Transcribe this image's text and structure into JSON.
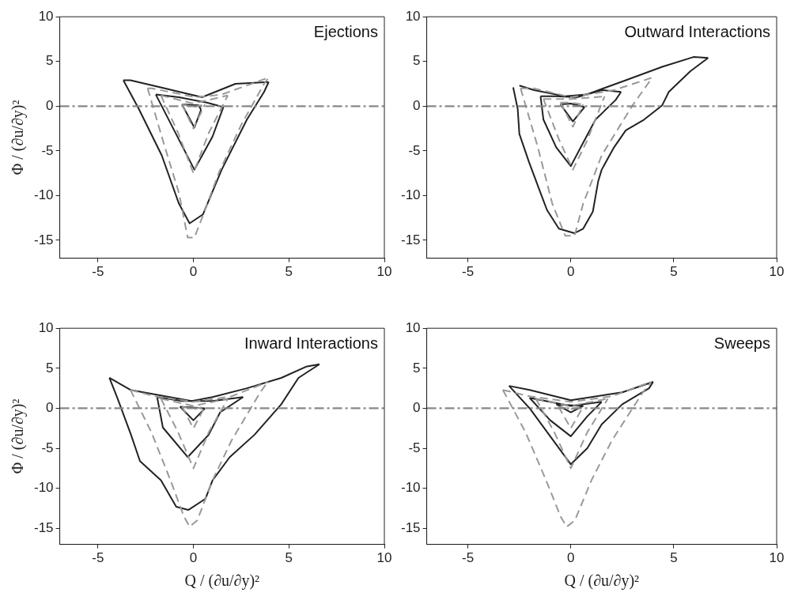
{
  "chart_data": [
    {
      "type": "line",
      "title": "Ejections",
      "ylabel": "Φ / (∂u/∂y)²",
      "xlim": [
        -7,
        10
      ],
      "ylim": [
        -17,
        10
      ],
      "xticks": [
        -5,
        0,
        5,
        10
      ],
      "yticks": [
        -15,
        -10,
        -5,
        0,
        5,
        10
      ],
      "grid": false,
      "legend": false,
      "ref_lines": [
        {
          "axis": "y",
          "value": 0,
          "color": "#888888",
          "line_style": "dashed"
        }
      ],
      "series": [
        {
          "type": "line",
          "color": "#999999",
          "line_style": "dashed",
          "x": [
            -2.4,
            -1.66,
            -0.76,
            -0.3,
            0.05,
            0.45,
            1.34,
            2.5,
            3.7,
            3.94
          ],
          "values": [
            2,
            -3.4,
            -9.7,
            -14.7,
            -14.7,
            -12.5,
            -7.4,
            -2.1,
            2.5,
            3.2
          ]
        },
        {
          "type": "line",
          "color": "#999999",
          "line_style": "dashed",
          "x": [
            -2.4,
            -2.2,
            0.13,
            1.48,
            3.94
          ],
          "values": [
            2,
            2,
            1,
            1.3,
            3.2
          ]
        },
        {
          "type": "line",
          "color": "#999999",
          "line_style": "dashed",
          "x": [
            -1.7,
            -0.8,
            0,
            0.8,
            1.8
          ],
          "values": [
            1.2,
            -3,
            -7.5,
            -3,
            1.2
          ]
        },
        {
          "type": "line",
          "color": "#999999",
          "line_style": "dashed",
          "x": [
            -1.7,
            0,
            1.8
          ],
          "values": [
            1.2,
            0.3,
            1.2
          ]
        },
        {
          "type": "line",
          "color": "#999999",
          "line_style": "dashed",
          "x": [
            -0.6,
            0,
            0.6
          ],
          "values": [
            0.2,
            -2.5,
            0.2
          ]
        },
        {
          "type": "line",
          "color": "#999999",
          "line_style": "dashed",
          "x": [
            -0.6,
            0,
            0.6
          ],
          "values": [
            0.2,
            -0.1,
            0.2
          ]
        },
        {
          "type": "line",
          "color": "#222222",
          "line_style": "solid",
          "x": [
            -3.67,
            -2.86,
            -1.66,
            -0.76,
            -0.2,
            0.5,
            1.48,
            2.8,
            3.7,
            3.94
          ],
          "values": [
            2.9,
            -0.3,
            -5.5,
            -10.9,
            -13.1,
            -12.1,
            -7.1,
            -1.5,
            1.6,
            2.7
          ]
        },
        {
          "type": "line",
          "color": "#222222",
          "line_style": "solid",
          "x": [
            -3.67,
            -3.3,
            -1.5,
            0.45,
            2.2,
            3.94
          ],
          "values": [
            2.9,
            2.9,
            2,
            1,
            2.5,
            2.7
          ]
        },
        {
          "type": "line",
          "color": "#222222",
          "line_style": "solid",
          "x": [
            -1.97,
            0.05,
            1,
            1.57
          ],
          "values": [
            1.3,
            -7.1,
            -3.4,
            -0.1
          ]
        },
        {
          "type": "line",
          "color": "#222222",
          "line_style": "solid",
          "x": [
            -1.97,
            -0.76,
            0.7,
            1.57
          ],
          "values": [
            1.3,
            1,
            0.4,
            -0.1
          ]
        },
        {
          "type": "line",
          "color": "#222222",
          "line_style": "solid",
          "x": [
            -0.6,
            0.05,
            0.4
          ],
          "values": [
            0.2,
            -2.4,
            -0.4
          ]
        },
        {
          "type": "line",
          "color": "#222222",
          "line_style": "solid",
          "x": [
            -0.6,
            0.27,
            0.4
          ],
          "values": [
            0.2,
            0.1,
            -0.4
          ]
        }
      ]
    },
    {
      "type": "line",
      "title": "Outward Interactions",
      "xlim": [
        -7,
        10
      ],
      "ylim": [
        -17,
        10
      ],
      "xticks": [
        -5,
        0,
        5,
        10
      ],
      "yticks": [
        -15,
        -10,
        -5,
        0,
        5,
        10
      ],
      "grid": false,
      "legend": false,
      "ref_lines": [
        {
          "axis": "y",
          "value": 0,
          "color": "#888888",
          "line_style": "dashed"
        }
      ],
      "series": [
        {
          "type": "line",
          "color": "#999999",
          "line_style": "dashed",
          "x": [
            -2.44,
            -1.6,
            -0.9,
            -0.27,
            0.18,
            0.6,
            1.5,
            3,
            3.96
          ],
          "values": [
            2,
            -4.6,
            -10.9,
            -14.5,
            -14.5,
            -10.9,
            -5.5,
            0.1,
            3.2
          ]
        },
        {
          "type": "line",
          "color": "#999999",
          "line_style": "dashed",
          "x": [
            -2.44,
            -1.8,
            0,
            2.1,
            3.96
          ],
          "values": [
            2,
            2,
            1,
            1.8,
            3.2
          ]
        },
        {
          "type": "line",
          "color": "#999999",
          "line_style": "dashed",
          "x": [
            -1.33,
            -0.58,
            0.1,
            0.76,
            1.64
          ],
          "values": [
            0.8,
            -3.7,
            -7.1,
            -4,
            1.1
          ]
        },
        {
          "type": "line",
          "color": "#999999",
          "line_style": "dashed",
          "x": [
            -1.33,
            0,
            1.64
          ],
          "values": [
            0.8,
            0.8,
            1.1
          ]
        },
        {
          "type": "line",
          "color": "#999999",
          "line_style": "dashed",
          "x": [
            -0.5,
            0.1,
            0.6
          ],
          "values": [
            0.4,
            -2.3,
            0.2
          ]
        },
        {
          "type": "line",
          "color": "#999999",
          "line_style": "dashed",
          "x": [
            -0.5,
            0,
            0.6
          ],
          "values": [
            0.4,
            0.4,
            0.2
          ]
        },
        {
          "type": "line",
          "color": "#222222",
          "line_style": "solid",
          "x": [
            -2.8,
            -2.58,
            -2.5,
            -2.04,
            -1.47,
            -1.16,
            -0.58,
            0.18,
            0.6,
            1.07,
            1.33,
            1.5,
            2.1,
            2.67,
            3.56,
            4.44,
            4.76,
            5.8,
            6.67
          ],
          "values": [
            2.1,
            -0.3,
            -3.1,
            -6.2,
            -9.7,
            -11.6,
            -13.7,
            -14.2,
            -13.7,
            -11.8,
            -8.4,
            -7.1,
            -4.6,
            -2.7,
            -1.5,
            0.1,
            1.6,
            3.9,
            5.4
          ]
        },
        {
          "type": "line",
          "color": "#222222",
          "line_style": "solid",
          "x": [
            -2.5,
            -1.78,
            -0.27,
            0.76,
            2.67,
            4.44,
            5.96,
            6.67
          ],
          "values": [
            2.3,
            1.8,
            1.1,
            1.3,
            2.9,
            4.4,
            5.5,
            5.4
          ]
        },
        {
          "type": "line",
          "color": "#222222",
          "line_style": "solid",
          "x": [
            -1.47,
            -1.33,
            -0.71,
            0,
            0.62,
            1.2,
            2.18,
            2.44
          ],
          "values": [
            1.1,
            -1.5,
            -4.6,
            -6.7,
            -4,
            -1.5,
            0.7,
            1.6
          ]
        },
        {
          "type": "line",
          "color": "#222222",
          "line_style": "solid",
          "x": [
            -1.47,
            -0.71,
            0.3,
            1.5,
            2.44
          ],
          "values": [
            1.1,
            1.1,
            1,
            1.8,
            1.6
          ]
        },
        {
          "type": "line",
          "color": "#222222",
          "line_style": "solid",
          "x": [
            -0.5,
            0.1,
            0.67
          ],
          "values": [
            0.2,
            -1.7,
            -0.1
          ]
        },
        {
          "type": "line",
          "color": "#222222",
          "line_style": "solid",
          "x": [
            -0.5,
            0,
            0.67
          ],
          "values": [
            0.2,
            0.3,
            -0.1
          ]
        }
      ]
    },
    {
      "type": "line",
      "title": "Inward Interactions",
      "xlabel": "Q / (∂u/∂y)²",
      "ylabel": "Φ / (∂u/∂y)²",
      "xlim": [
        -7,
        10
      ],
      "ylim": [
        -17,
        10
      ],
      "xticks": [
        -5,
        0,
        5,
        10
      ],
      "yticks": [
        -15,
        -10,
        -5,
        0,
        5,
        10
      ],
      "grid": false,
      "legend": false,
      "ref_lines": [
        {
          "axis": "y",
          "value": 0,
          "color": "#888888",
          "line_style": "dashed"
        }
      ],
      "series": [
        {
          "type": "line",
          "color": "#999999",
          "line_style": "dashed",
          "x": [
            -3.3,
            -2.2,
            -1.2,
            -0.5,
            -0.2,
            0.2,
            1,
            2,
            3.5,
            3.9
          ],
          "values": [
            2.3,
            -3,
            -9,
            -13.5,
            -14.8,
            -14,
            -9,
            -4,
            2,
            3.3
          ]
        },
        {
          "type": "line",
          "color": "#999999",
          "line_style": "dashed",
          "x": [
            -3.3,
            -2,
            0,
            2,
            3.9
          ],
          "values": [
            2.3,
            1.5,
            0.8,
            1.5,
            3.3
          ]
        },
        {
          "type": "line",
          "color": "#999999",
          "line_style": "dashed",
          "x": [
            -1.7,
            -0.8,
            0,
            0.8,
            1.8
          ],
          "values": [
            1.2,
            -3,
            -7.5,
            -3,
            1.2
          ]
        },
        {
          "type": "line",
          "color": "#999999",
          "line_style": "dashed",
          "x": [
            -1.7,
            0,
            1.8
          ],
          "values": [
            1.2,
            0.3,
            1.2
          ]
        },
        {
          "type": "line",
          "color": "#999999",
          "line_style": "dashed",
          "x": [
            -0.6,
            0,
            0.6
          ],
          "values": [
            0.2,
            -2.5,
            0.2
          ]
        },
        {
          "type": "line",
          "color": "#999999",
          "line_style": "dashed",
          "x": [
            -0.6,
            0,
            0.6
          ],
          "values": [
            0.2,
            -0.1,
            0.2
          ]
        },
        {
          "type": "line",
          "color": "#222222",
          "line_style": "solid",
          "x": [
            -4.4,
            -4,
            -3.27,
            -2.8,
            -1.7,
            -0.9,
            -0.27,
            0.63,
            1,
            1.9,
            3.2,
            4.6,
            5.5,
            6.6
          ],
          "values": [
            3.8,
            1.4,
            -3.3,
            -6.6,
            -9,
            -12.3,
            -12.7,
            -11.3,
            -9,
            -6.1,
            -3.3,
            0.5,
            3.8,
            5.5
          ]
        },
        {
          "type": "line",
          "color": "#222222",
          "line_style": "solid",
          "x": [
            -4.4,
            -3.3,
            -1.7,
            -0.1,
            1,
            2.8,
            4.6,
            5.9,
            6.6
          ],
          "values": [
            3.8,
            2.3,
            1.6,
            0.9,
            1.4,
            2.5,
            3.8,
            5.2,
            5.5
          ]
        },
        {
          "type": "line",
          "color": "#222222",
          "line_style": "solid",
          "x": [
            -1.9,
            -1.6,
            -0.3,
            0.8,
            1.4,
            2.6
          ],
          "values": [
            1.4,
            -2.4,
            -6.1,
            -3.3,
            -0.5,
            1.4
          ]
        },
        {
          "type": "line",
          "color": "#222222",
          "line_style": "solid",
          "x": [
            -1.9,
            -0.6,
            1,
            2.6
          ],
          "values": [
            1.4,
            0.9,
            0.9,
            1.4
          ]
        },
        {
          "type": "line",
          "color": "#222222",
          "line_style": "solid",
          "x": [
            -0.7,
            0,
            0.6
          ],
          "values": [
            0.2,
            -1.5,
            0
          ]
        },
        {
          "type": "line",
          "color": "#222222",
          "line_style": "solid",
          "x": [
            -0.7,
            0.6
          ],
          "values": [
            0.2,
            0
          ]
        }
      ]
    },
    {
      "type": "line",
      "title": "Sweeps",
      "xlabel": "Q / (∂u/∂y)²",
      "xlim": [
        -7,
        10
      ],
      "ylim": [
        -17,
        10
      ],
      "xticks": [
        -5,
        0,
        5,
        10
      ],
      "yticks": [
        -15,
        -10,
        -5,
        0,
        5,
        10
      ],
      "grid": false,
      "legend": false,
      "ref_lines": [
        {
          "axis": "y",
          "value": 0,
          "color": "#888888",
          "line_style": "dashed"
        }
      ],
      "series": [
        {
          "type": "line",
          "color": "#999999",
          "line_style": "dashed",
          "x": [
            -3.3,
            -2.2,
            -1.2,
            -0.5,
            -0.2,
            0.2,
            1,
            2,
            3.5,
            3.9
          ],
          "values": [
            2.3,
            -3,
            -9,
            -13.5,
            -14.8,
            -14,
            -9,
            -4,
            2,
            3.3
          ]
        },
        {
          "type": "line",
          "color": "#999999",
          "line_style": "dashed",
          "x": [
            -3.3,
            -2,
            0,
            2,
            3.9
          ],
          "values": [
            2.3,
            1.5,
            0.8,
            1.5,
            3.3
          ]
        },
        {
          "type": "line",
          "color": "#999999",
          "line_style": "dashed",
          "x": [
            -1.7,
            -0.8,
            0,
            0.8,
            1.8
          ],
          "values": [
            1.2,
            -3,
            -7.5,
            -3,
            1.2
          ]
        },
        {
          "type": "line",
          "color": "#999999",
          "line_style": "dashed",
          "x": [
            -1.7,
            0,
            1.8
          ],
          "values": [
            1.2,
            0.3,
            1.2
          ]
        },
        {
          "type": "line",
          "color": "#999999",
          "line_style": "dashed",
          "x": [
            -0.6,
            0,
            0.6
          ],
          "values": [
            0.2,
            -2.5,
            0.2
          ]
        },
        {
          "type": "line",
          "color": "#999999",
          "line_style": "dashed",
          "x": [
            -0.6,
            0,
            0.6
          ],
          "values": [
            0.2,
            -0.1,
            0.2
          ]
        },
        {
          "type": "line",
          "color": "#222222",
          "line_style": "solid",
          "x": [
            -3,
            -2,
            -1,
            0,
            0.8,
            1.5,
            2.5,
            3.8,
            4
          ],
          "values": [
            2.8,
            0,
            -3.5,
            -7,
            -5,
            -2,
            0.5,
            2.5,
            3.3
          ]
        },
        {
          "type": "line",
          "color": "#222222",
          "line_style": "solid",
          "x": [
            -3,
            -2,
            0,
            2.5,
            4
          ],
          "values": [
            2.8,
            2.3,
            1,
            2,
            3.3
          ]
        },
        {
          "type": "line",
          "color": "#222222",
          "line_style": "solid",
          "x": [
            -2,
            -1,
            0,
            0.8,
            1.5
          ],
          "values": [
            1.3,
            -1.5,
            -3.5,
            -1,
            0.8
          ]
        },
        {
          "type": "line",
          "color": "#222222",
          "line_style": "solid",
          "x": [
            -2,
            0,
            1.5
          ],
          "values": [
            1.3,
            0.3,
            0.8
          ]
        },
        {
          "type": "line",
          "color": "#222222",
          "line_style": "solid",
          "x": [
            -0.7,
            0,
            0.6
          ],
          "values": [
            0.5,
            -0.5,
            0.3
          ]
        },
        {
          "type": "line",
          "color": "#222222",
          "line_style": "solid",
          "x": [
            -0.7,
            0.6
          ],
          "values": [
            0.5,
            0.3
          ]
        }
      ]
    }
  ]
}
